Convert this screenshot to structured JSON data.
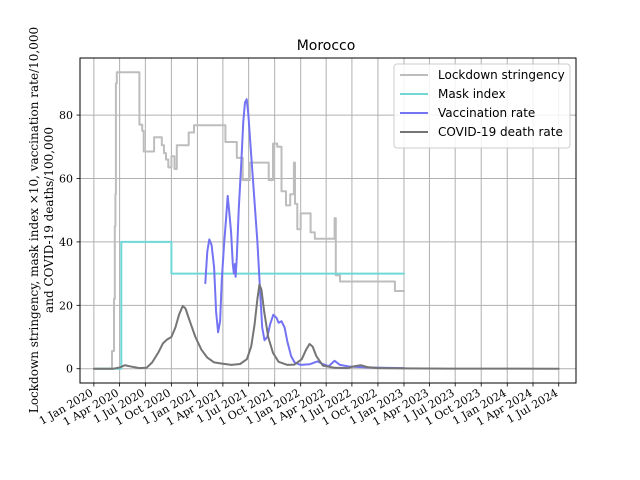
{
  "chart_data": {
    "type": "line",
    "title": "Morocco",
    "ylabel_line1": "Lockdown stringency, mask index ×10, vaccination rate/10,000",
    "ylabel_line2": "and COVID-19 deaths/100,000",
    "xlabel": "",
    "ylim": [
      -4.5,
      98
    ],
    "xlim": [
      "2019-11-13",
      "2024-08-31"
    ],
    "y_ticks": [
      0,
      20,
      40,
      60,
      80
    ],
    "x_ticks": [
      {
        "date": "2020-01-01",
        "label": "1 Jan 2020"
      },
      {
        "date": "2020-04-01",
        "label": "1 Apr 2020"
      },
      {
        "date": "2020-07-01",
        "label": "1 Jul 2020"
      },
      {
        "date": "2020-10-01",
        "label": "1 Oct 2020"
      },
      {
        "date": "2021-01-01",
        "label": "1 Jan 2021"
      },
      {
        "date": "2021-04-01",
        "label": "1 Apr 2021"
      },
      {
        "date": "2021-07-01",
        "label": "1 Jul 2021"
      },
      {
        "date": "2021-10-01",
        "label": "1 Oct 2021"
      },
      {
        "date": "2022-01-01",
        "label": "1 Jan 2022"
      },
      {
        "date": "2022-04-01",
        "label": "1 Apr 2022"
      },
      {
        "date": "2022-07-01",
        "label": "1 Jul 2022"
      },
      {
        "date": "2022-10-01",
        "label": "1 Oct 2022"
      },
      {
        "date": "2023-01-01",
        "label": "1 Jan 2023"
      },
      {
        "date": "2023-04-01",
        "label": "1 Apr 2023"
      },
      {
        "date": "2023-07-01",
        "label": "1 Jul 2023"
      },
      {
        "date": "2023-10-01",
        "label": "1 Oct 2023"
      },
      {
        "date": "2024-01-01",
        "label": "1 Jan 2024"
      },
      {
        "date": "2024-04-01",
        "label": "1 Apr 2024"
      },
      {
        "date": "2024-07-01",
        "label": "1 Jul 2024"
      }
    ],
    "grid": true,
    "legend_position": "top-right",
    "series": [
      {
        "name": "Lockdown stringency",
        "color": "#bdbdbd",
        "step": true,
        "points": [
          [
            "2020-01-01",
            0
          ],
          [
            "2020-03-05",
            0
          ],
          [
            "2020-03-05",
            5.6
          ],
          [
            "2020-03-12",
            5.6
          ],
          [
            "2020-03-12",
            22
          ],
          [
            "2020-03-15",
            22
          ],
          [
            "2020-03-15",
            45
          ],
          [
            "2020-03-17",
            45
          ],
          [
            "2020-03-17",
            55
          ],
          [
            "2020-03-19",
            55
          ],
          [
            "2020-03-19",
            90
          ],
          [
            "2020-03-22",
            90
          ],
          [
            "2020-03-22",
            93.5
          ],
          [
            "2020-06-10",
            93.5
          ],
          [
            "2020-06-10",
            77
          ],
          [
            "2020-06-20",
            77
          ],
          [
            "2020-06-20",
            75
          ],
          [
            "2020-06-25",
            75
          ],
          [
            "2020-06-25",
            68.5
          ],
          [
            "2020-08-01",
            68.5
          ],
          [
            "2020-08-01",
            73
          ],
          [
            "2020-08-28",
            73
          ],
          [
            "2020-08-28",
            70.5
          ],
          [
            "2020-09-05",
            70.5
          ],
          [
            "2020-09-05",
            68
          ],
          [
            "2020-09-12",
            68
          ],
          [
            "2020-09-12",
            66
          ],
          [
            "2020-09-20",
            66
          ],
          [
            "2020-09-20",
            63.5
          ],
          [
            "2020-10-01",
            63.5
          ],
          [
            "2020-10-01",
            67
          ],
          [
            "2020-10-12",
            67
          ],
          [
            "2020-10-12",
            63
          ],
          [
            "2020-10-20",
            63
          ],
          [
            "2020-10-20",
            70.5
          ],
          [
            "2020-12-01",
            70.5
          ],
          [
            "2020-12-01",
            74.5
          ],
          [
            "2020-12-20",
            74.5
          ],
          [
            "2020-12-20",
            76.8
          ],
          [
            "2021-04-10",
            76.8
          ],
          [
            "2021-04-10",
            71.5
          ],
          [
            "2021-05-20",
            71.5
          ],
          [
            "2021-05-20",
            66.5
          ],
          [
            "2021-06-10",
            66.5
          ],
          [
            "2021-06-10",
            59.5
          ],
          [
            "2021-07-05",
            59.5
          ],
          [
            "2021-07-05",
            65
          ],
          [
            "2021-09-10",
            65
          ],
          [
            "2021-09-10",
            59.5
          ],
          [
            "2021-09-25",
            59.5
          ],
          [
            "2021-09-25",
            71
          ],
          [
            "2021-10-10",
            71
          ],
          [
            "2021-10-10",
            70
          ],
          [
            "2021-10-25",
            70
          ],
          [
            "2021-10-25",
            56
          ],
          [
            "2021-11-10",
            56
          ],
          [
            "2021-11-10",
            51.5
          ],
          [
            "2021-11-25",
            51.5
          ],
          [
            "2021-11-25",
            55
          ],
          [
            "2021-12-08",
            55
          ],
          [
            "2021-12-08",
            65
          ],
          [
            "2021-12-12",
            65
          ],
          [
            "2021-12-12",
            52
          ],
          [
            "2021-12-20",
            52
          ],
          [
            "2021-12-20",
            44
          ],
          [
            "2022-01-01",
            44
          ],
          [
            "2022-01-01",
            49
          ],
          [
            "2022-02-05",
            49
          ],
          [
            "2022-02-05",
            43
          ],
          [
            "2022-02-20",
            43
          ],
          [
            "2022-02-20",
            41
          ],
          [
            "2022-05-01",
            41
          ],
          [
            "2022-05-01",
            47.5
          ],
          [
            "2022-05-05",
            47.5
          ],
          [
            "2022-05-05",
            29.5
          ],
          [
            "2022-05-20",
            29.5
          ],
          [
            "2022-05-20",
            27.5
          ],
          [
            "2022-11-30",
            27.5
          ],
          [
            "2022-11-30",
            24.5
          ],
          [
            "2023-01-01",
            24.5
          ]
        ]
      },
      {
        "name": "Mask index",
        "color": "#72d7d7",
        "step": true,
        "points": [
          [
            "2020-01-01",
            0
          ],
          [
            "2020-04-07",
            0
          ],
          [
            "2020-04-07",
            40
          ],
          [
            "2020-10-01",
            40
          ],
          [
            "2020-10-01",
            30
          ],
          [
            "2023-01-01",
            30
          ]
        ]
      },
      {
        "name": "Vaccination rate",
        "color": "#7373f3",
        "step": false,
        "points": [
          [
            "2021-01-29",
            27
          ],
          [
            "2021-02-05",
            37
          ],
          [
            "2021-02-12",
            40.8
          ],
          [
            "2021-02-20",
            39
          ],
          [
            "2021-03-01",
            32
          ],
          [
            "2021-03-08",
            18
          ],
          [
            "2021-03-15",
            11.5
          ],
          [
            "2021-03-22",
            15
          ],
          [
            "2021-03-28",
            28
          ],
          [
            "2021-04-05",
            39
          ],
          [
            "2021-04-12",
            47
          ],
          [
            "2021-04-18",
            54.5
          ],
          [
            "2021-04-24",
            49
          ],
          [
            "2021-04-30",
            43
          ],
          [
            "2021-05-06",
            33
          ],
          [
            "2021-05-10",
            30
          ],
          [
            "2021-05-13",
            33
          ],
          [
            "2021-05-16",
            29
          ],
          [
            "2021-05-20",
            35
          ],
          [
            "2021-05-27",
            50
          ],
          [
            "2021-06-05",
            65
          ],
          [
            "2021-06-12",
            78
          ],
          [
            "2021-06-18",
            84
          ],
          [
            "2021-06-24",
            85
          ],
          [
            "2021-06-30",
            80
          ],
          [
            "2021-07-08",
            70
          ],
          [
            "2021-07-20",
            55
          ],
          [
            "2021-08-01",
            40
          ],
          [
            "2021-08-10",
            25
          ],
          [
            "2021-08-18",
            13
          ],
          [
            "2021-08-26",
            9
          ],
          [
            "2021-09-05",
            10
          ],
          [
            "2021-09-15",
            14
          ],
          [
            "2021-09-26",
            17
          ],
          [
            "2021-10-08",
            16
          ],
          [
            "2021-10-15",
            14.5
          ],
          [
            "2021-10-25",
            15
          ],
          [
            "2021-11-05",
            13
          ],
          [
            "2021-11-15",
            8.5
          ],
          [
            "2021-11-28",
            4
          ],
          [
            "2021-12-10",
            2
          ],
          [
            "2022-01-01",
            1.2
          ],
          [
            "2022-02-01",
            1.4
          ],
          [
            "2022-03-01",
            2.3
          ],
          [
            "2022-03-20",
            1.5
          ],
          [
            "2022-04-10",
            0.8
          ],
          [
            "2022-05-01",
            2.5
          ],
          [
            "2022-05-20",
            1.2
          ],
          [
            "2022-06-20",
            0.7
          ],
          [
            "2022-09-01",
            0.4
          ],
          [
            "2023-01-01",
            0.2
          ]
        ]
      },
      {
        "name": "COVID-19 death rate",
        "color": "#757575",
        "step": false,
        "points": [
          [
            "2020-01-01",
            0
          ],
          [
            "2020-03-10",
            0
          ],
          [
            "2020-04-01",
            0.4
          ],
          [
            "2020-04-20",
            1.1
          ],
          [
            "2020-05-05",
            0.8
          ],
          [
            "2020-06-10",
            0.2
          ],
          [
            "2020-07-05",
            0.3
          ],
          [
            "2020-07-25",
            2
          ],
          [
            "2020-08-15",
            5
          ],
          [
            "2020-09-01",
            8
          ],
          [
            "2020-09-15",
            9.2
          ],
          [
            "2020-10-01",
            10
          ],
          [
            "2020-10-15",
            13
          ],
          [
            "2020-10-28",
            17
          ],
          [
            "2020-11-10",
            19.8
          ],
          [
            "2020-11-20",
            19
          ],
          [
            "2020-12-05",
            15
          ],
          [
            "2020-12-25",
            10
          ],
          [
            "2021-01-15",
            6
          ],
          [
            "2021-02-05",
            3.5
          ],
          [
            "2021-03-01",
            2
          ],
          [
            "2021-04-01",
            1.6
          ],
          [
            "2021-05-01",
            1.2
          ],
          [
            "2021-06-01",
            1.5
          ],
          [
            "2021-06-25",
            3
          ],
          [
            "2021-07-10",
            7
          ],
          [
            "2021-07-22",
            14
          ],
          [
            "2021-08-01",
            22
          ],
          [
            "2021-08-08",
            26.5
          ],
          [
            "2021-08-15",
            25
          ],
          [
            "2021-08-25",
            18
          ],
          [
            "2021-09-08",
            10
          ],
          [
            "2021-09-25",
            5
          ],
          [
            "2021-10-15",
            2.2
          ],
          [
            "2021-11-15",
            1.2
          ],
          [
            "2021-12-10",
            1.3
          ],
          [
            "2022-01-05",
            3
          ],
          [
            "2022-01-20",
            6
          ],
          [
            "2022-02-01",
            7.8
          ],
          [
            "2022-02-12",
            7
          ],
          [
            "2022-02-25",
            4
          ],
          [
            "2022-03-20",
            1
          ],
          [
            "2022-05-01",
            0.3
          ],
          [
            "2022-06-15",
            0.2
          ],
          [
            "2022-07-10",
            0.8
          ],
          [
            "2022-08-01",
            1.1
          ],
          [
            "2022-08-25",
            0.5
          ],
          [
            "2022-10-01",
            0.2
          ],
          [
            "2023-01-01",
            0.1
          ],
          [
            "2023-06-01",
            0.05
          ],
          [
            "2024-07-01",
            0
          ]
        ]
      }
    ]
  }
}
